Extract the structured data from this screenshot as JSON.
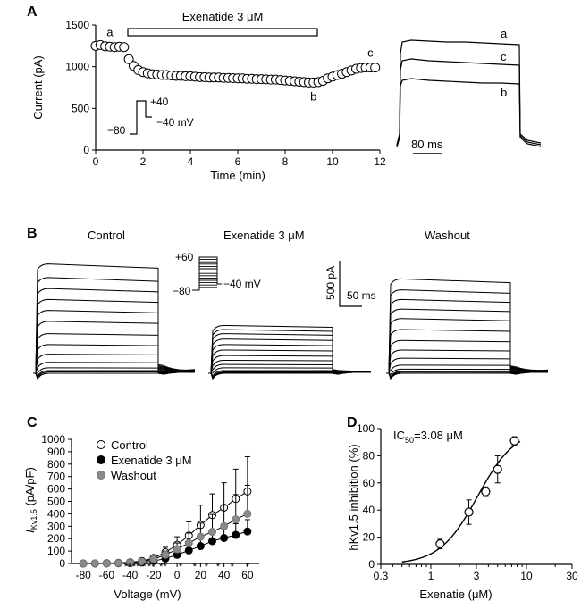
{
  "chart_data": [
    {
      "panel": "A",
      "type": "scatter",
      "xlabel": "Time (min)",
      "ylabel": "Current (pA)",
      "xlim": [
        0,
        12
      ],
      "ylim": [
        0,
        1500
      ],
      "xticks": [
        0,
        2,
        4,
        6,
        8,
        10,
        12
      ],
      "yticks": [
        0,
        500,
        1000,
        1500
      ],
      "drug_bar": {
        "label": "Exenatide 3 μM",
        "start": 1.3,
        "end": 9.4
      },
      "point_labels": [
        {
          "text": "a",
          "x": 0.6,
          "y": 1240
        },
        {
          "text": "b",
          "x": 9.2,
          "y": 810
        },
        {
          "text": "c",
          "x": 11.6,
          "y": 990
        }
      ],
      "protocol": {
        "hold": "−80",
        "step": "+40",
        "tail": "−40 mV"
      },
      "time": [
        0.0,
        0.2,
        0.4,
        0.6,
        0.8,
        1.0,
        1.2,
        1.4,
        1.6,
        1.8,
        2.0,
        2.2,
        2.4,
        2.6,
        2.8,
        3.0,
        3.2,
        3.4,
        3.6,
        3.8,
        4.0,
        4.2,
        4.4,
        4.6,
        4.8,
        5.0,
        5.2,
        5.4,
        5.6,
        5.8,
        6.0,
        6.2,
        6.4,
        6.6,
        6.8,
        7.0,
        7.2,
        7.4,
        7.6,
        7.8,
        8.0,
        8.2,
        8.4,
        8.6,
        8.8,
        9.0,
        9.2,
        9.4,
        9.6,
        9.8,
        10.0,
        10.2,
        10.4,
        10.6,
        10.8,
        11.0,
        11.2,
        11.4,
        11.6,
        11.8
      ],
      "current": [
        1250,
        1260,
        1245,
        1240,
        1235,
        1240,
        1235,
        1090,
        1010,
        960,
        935,
        920,
        910,
        905,
        900,
        900,
        895,
        890,
        890,
        885,
        885,
        880,
        875,
        875,
        870,
        870,
        870,
        865,
        865,
        862,
        860,
        860,
        855,
        855,
        850,
        850,
        848,
        845,
        845,
        840,
        835,
        830,
        825,
        820,
        815,
        810,
        810,
        815,
        830,
        860,
        880,
        900,
        915,
        935,
        955,
        975,
        985,
        990,
        990,
        990
      ],
      "traces": {
        "labels": [
          "a",
          "c",
          "b"
        ],
        "scale_label": "80 ms",
        "steady_state_pA": [
          1240,
          990,
          810
        ]
      }
    },
    {
      "panel": "B",
      "type": "line",
      "conditions": [
        "Control",
        "Exenatide 3 μM",
        "Washout"
      ],
      "protocol": {
        "top": "+60",
        "hold": "−80",
        "tail": "−40 mV"
      },
      "scale": {
        "current": "500 pA",
        "time": "50 ms"
      },
      "step_voltages_mV": [
        -80,
        -70,
        -60,
        -50,
        -40,
        -30,
        -20,
        -10,
        0,
        10,
        20,
        30,
        40,
        50,
        60
      ],
      "peak_current_pA": {
        "Control": [
          0,
          0,
          10,
          20,
          40,
          80,
          140,
          210,
          290,
          380,
          460,
          540,
          620,
          700,
          800
        ],
        "Exenatide 3 μM": [
          0,
          0,
          5,
          10,
          20,
          40,
          65,
          95,
          130,
          170,
          210,
          250,
          290,
          320,
          350
        ],
        "Washout": [
          0,
          0,
          8,
          15,
          30,
          60,
          110,
          170,
          240,
          320,
          400,
          470,
          540,
          610,
          690
        ]
      }
    },
    {
      "panel": "C",
      "type": "line",
      "xlabel": "Voltage (mV)",
      "ylabel": "I Kv1.5 (pA/pF)",
      "ylabel_main": "I",
      "ylabel_sub": "Kv1.5",
      "ylabel_unit": " (pA/pF)",
      "xlim": [
        -90,
        70
      ],
      "ylim": [
        0,
        1000
      ],
      "xticks": [
        -80,
        -60,
        -40,
        -20,
        0,
        20,
        40,
        60
      ],
      "yticks": [
        0,
        100,
        200,
        300,
        400,
        500,
        600,
        700,
        800,
        900,
        1000
      ],
      "legend": "top-left",
      "x": [
        -80,
        -70,
        -60,
        -50,
        -40,
        -30,
        -20,
        -10,
        0,
        10,
        20,
        30,
        40,
        50,
        60
      ],
      "series": [
        {
          "name": "Control",
          "marker": "open",
          "values": [
            0,
            1,
            3,
            5,
            10,
            20,
            45,
            90,
            150,
            225,
            310,
            390,
            450,
            520,
            580
          ],
          "errors": [
            0,
            0,
            1,
            2,
            5,
            10,
            20,
            40,
            65,
            110,
            160,
            170,
            200,
            240,
            280
          ]
        },
        {
          "name": "Exenatide 3 μM",
          "marker": "filled",
          "values": [
            0,
            0,
            1,
            2,
            3,
            8,
            20,
            40,
            70,
            105,
            140,
            180,
            205,
            230,
            258
          ],
          "errors": [
            0,
            0,
            0,
            1,
            2,
            4,
            8,
            15,
            25,
            40,
            55,
            70,
            80,
            90,
            95
          ]
        },
        {
          "name": "Washout",
          "marker": "grey",
          "values": [
            0,
            1,
            2,
            4,
            8,
            15,
            35,
            70,
            115,
            165,
            215,
            255,
            300,
            355,
            400
          ],
          "errors": [
            0,
            0,
            1,
            2,
            4,
            8,
            15,
            30,
            50,
            80,
            110,
            140,
            170,
            200,
            230
          ]
        }
      ],
      "significance": [
        "**",
        "**",
        "*",
        "**",
        "**",
        "*",
        "*",
        "*",
        "*",
        "*",
        "*"
      ]
    },
    {
      "panel": "D",
      "type": "scatter",
      "xlabel": "Exenatie (μM)",
      "ylabel": "hKv1.5 inhibition (%)",
      "x_scale": "log",
      "xlim": [
        0.3,
        30
      ],
      "ylim": [
        0,
        100
      ],
      "xticks": [
        0.3,
        1,
        3,
        10,
        30
      ],
      "yticks": [
        0,
        20,
        40,
        60,
        80,
        100
      ],
      "annotation": "IC50=3.08 μM",
      "annotation_main": "IC",
      "annotation_sub": "50",
      "annotation_rest": "=3.08 μM",
      "x": [
        1.25,
        2.5,
        3.75,
        5,
        7.5
      ],
      "y": [
        15,
        38.5,
        53.5,
        70,
        91
      ],
      "errors": [
        3.5,
        9,
        3.5,
        10,
        3
      ],
      "fit": {
        "IC50": 3.08,
        "hill": 2.2
      }
    }
  ]
}
